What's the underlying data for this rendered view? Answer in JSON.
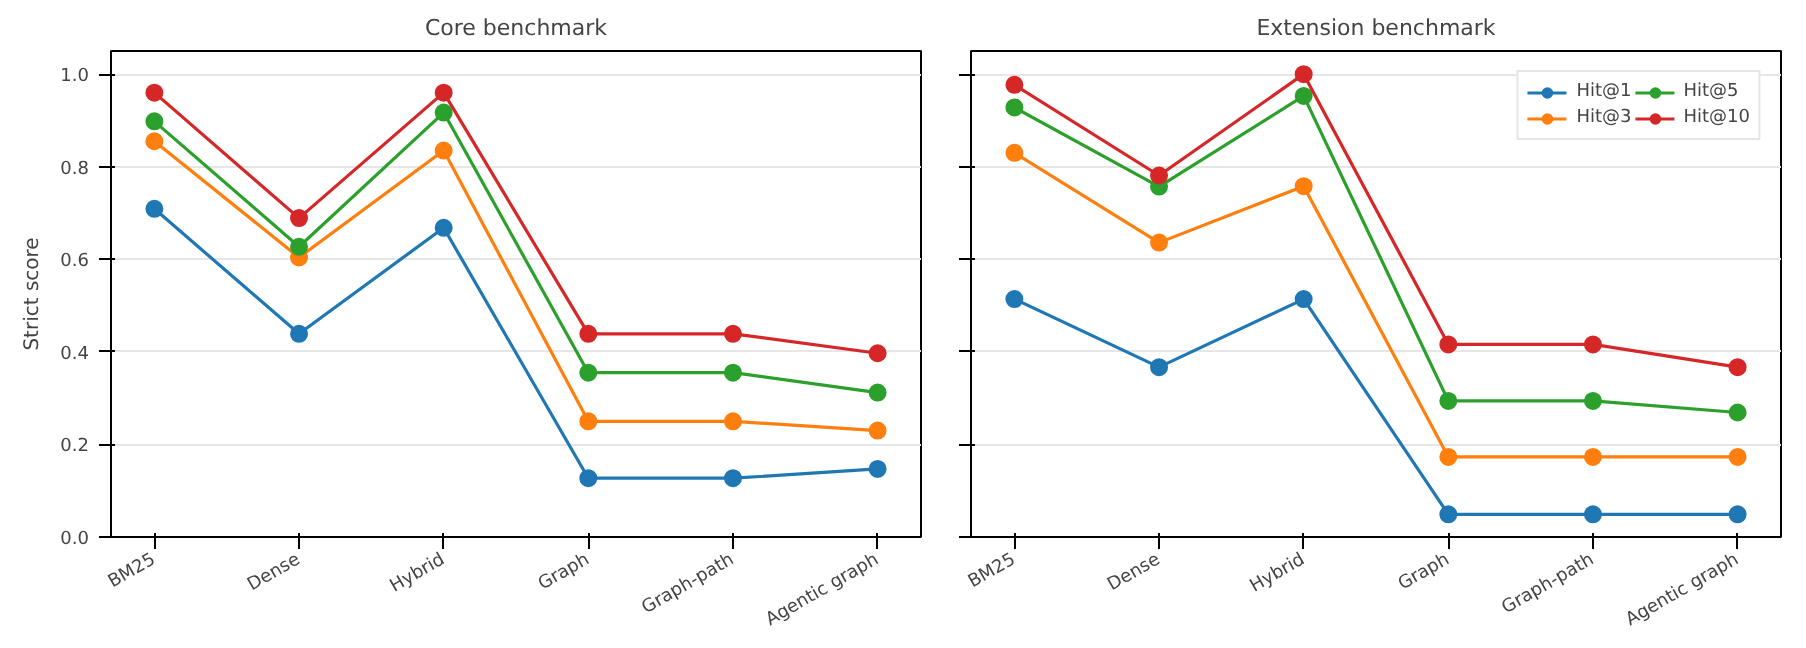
{
  "chart_data": [
    {
      "type": "line",
      "title": "Core benchmark",
      "ylabel": "Strict score",
      "categories": [
        "BM25",
        "Dense",
        "Hybrid",
        "Graph",
        "Graph-path",
        "Agentic graph"
      ],
      "ylim": [
        0,
        1.05
      ],
      "yticks": [
        {
          "value": 0,
          "label": "0.0"
        },
        0.2,
        0.4,
        0.6,
        0.8,
        {
          "value": 1,
          "label": "1.0"
        }
      ],
      "grid": "y",
      "marker": "circle",
      "line_style": "solid",
      "legend": false,
      "series": [
        {
          "color": "#1f77b4",
          "values": [
            0.709,
            0.439,
            0.668,
            0.127,
            0.127,
            0.147
          ]
        },
        {
          "color": "#ff7f0e",
          "values": [
            0.855,
            0.604,
            0.835,
            0.25,
            0.25,
            0.23
          ]
        },
        {
          "color": "#2ca02c",
          "values": [
            0.898,
            0.627,
            0.917,
            0.355,
            0.355,
            0.312
          ]
        },
        {
          "color": "#d62728",
          "values": [
            0.96,
            0.689,
            0.96,
            0.439,
            0.439,
            0.397
          ]
        }
      ]
    },
    {
      "type": "line",
      "title": "Extension benchmark",
      "categories": [
        "BM25",
        "Dense",
        "Hybrid",
        "Graph",
        "Graph-path",
        "Agentic graph"
      ],
      "ylim": [
        0,
        1.05
      ],
      "yticks": [
        0,
        0.2,
        0.4,
        0.6,
        0.8,
        1
      ],
      "tick_labels": "x",
      "grid": "y",
      "marker": "circle",
      "line_style": "solid",
      "legend": "top right",
      "series": [
        {
          "name": "Hit@1",
          "color": "#1f77b4",
          "values": [
            0.514,
            0.367,
            0.514,
            0.049,
            0.049,
            0.049
          ]
        },
        {
          "name": "Hit@3",
          "color": "#ff7f0e",
          "values": [
            0.83,
            0.636,
            0.758,
            0.173,
            0.173,
            0.173
          ]
        },
        {
          "name": "Hit@5",
          "color": "#2ca02c",
          "values": [
            0.928,
            0.757,
            0.953,
            0.294,
            0.294,
            0.269
          ]
        },
        {
          "name": "Hit@10",
          "color": "#d62728",
          "values": [
            0.977,
            0.781,
            1.0,
            0.416,
            0.416,
            0.367
          ]
        }
      ]
    }
  ]
}
